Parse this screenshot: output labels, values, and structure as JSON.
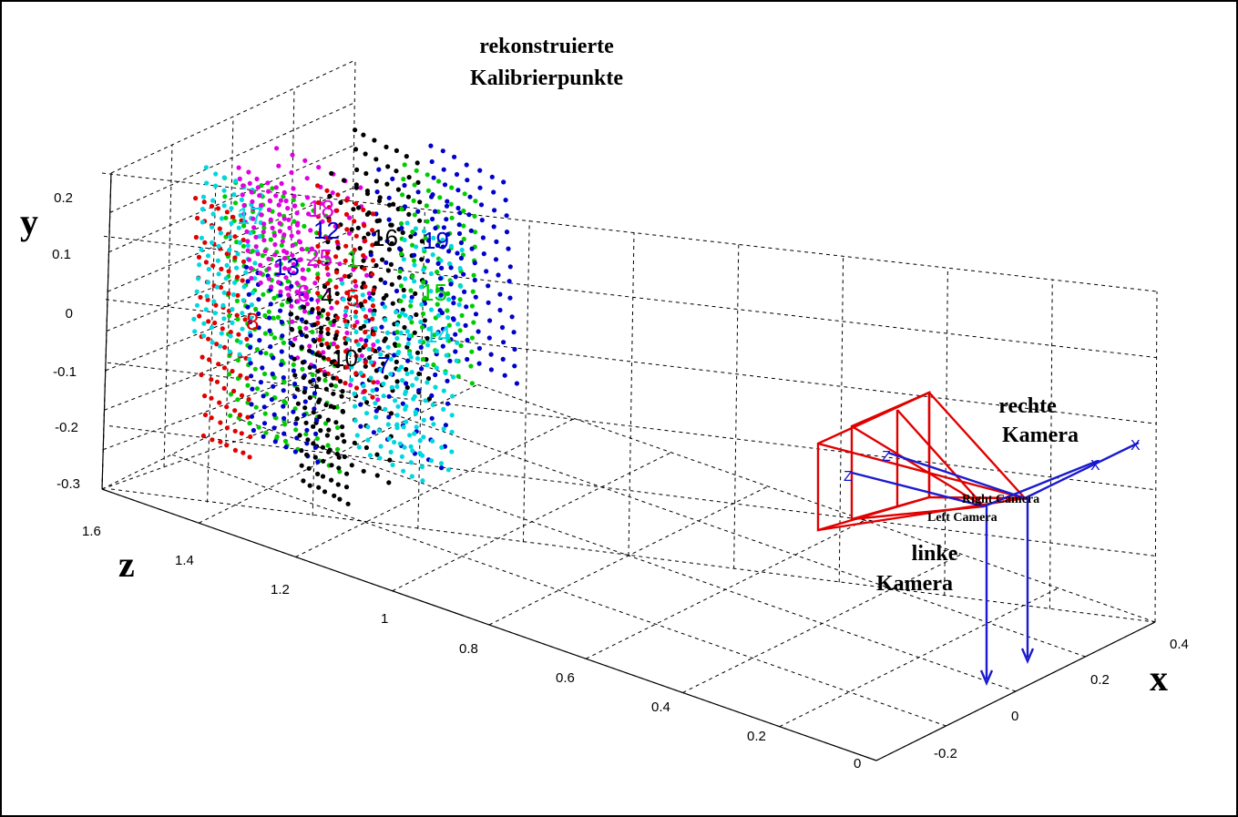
{
  "chart_data": {
    "type": "scatter",
    "projection": "3d",
    "title": "",
    "axes": {
      "x": {
        "label": "x",
        "ticks": [
          "-0.2",
          "0",
          "0.2",
          "0.4"
        ]
      },
      "y": {
        "label": "y",
        "ticks": [
          "0.2",
          "0.1",
          "0",
          "-0.1",
          "-0.2",
          "-0.3"
        ]
      },
      "z": {
        "label": "z",
        "ticks": [
          "1.6",
          "1.4",
          "1.2",
          "1",
          "0.8",
          "0.6",
          "0.4",
          "0.2",
          "0"
        ]
      }
    },
    "grid": true,
    "annotations": {
      "points_title_line1": "rekonstruierte",
      "points_title_line2": "Kalibrierpunkte",
      "right_camera_line1": "rechte",
      "right_camera_line2": "Kamera",
      "left_camera_line1": "linke",
      "left_camera_line2": "Kamera",
      "right_camera_small": "Right Camera",
      "left_camera_small": "Left Camera"
    },
    "camera_axis_letters": {
      "z": "Z",
      "x": "X"
    },
    "point_colors": [
      "#e00000",
      "#00cc00",
      "#0000cc",
      "#000000",
      "#00d8e0",
      "#e000e0"
    ],
    "series_labels": [
      {
        "text": "17",
        "color": "#00d8e0"
      },
      {
        "text": "18",
        "color": "#e000e0"
      },
      {
        "text": "12",
        "color": "#0000cc"
      },
      {
        "text": "16",
        "color": "#000000"
      },
      {
        "text": "19",
        "color": "#0000cc"
      },
      {
        "text": "13",
        "color": "#0000cc"
      },
      {
        "text": "25",
        "color": "#e000e0"
      },
      {
        "text": "1",
        "color": "#00cc00"
      },
      {
        "text": "6",
        "color": "#e000e0"
      },
      {
        "text": "4",
        "color": "#000000"
      },
      {
        "text": "8",
        "color": "#e00000"
      },
      {
        "text": "5",
        "color": "#e00000"
      },
      {
        "text": "10",
        "color": "#000000"
      },
      {
        "text": "7",
        "color": "#0000cc"
      },
      {
        "text": "14",
        "color": "#00d8e0"
      },
      {
        "text": "15",
        "color": "#00cc00"
      }
    ]
  }
}
